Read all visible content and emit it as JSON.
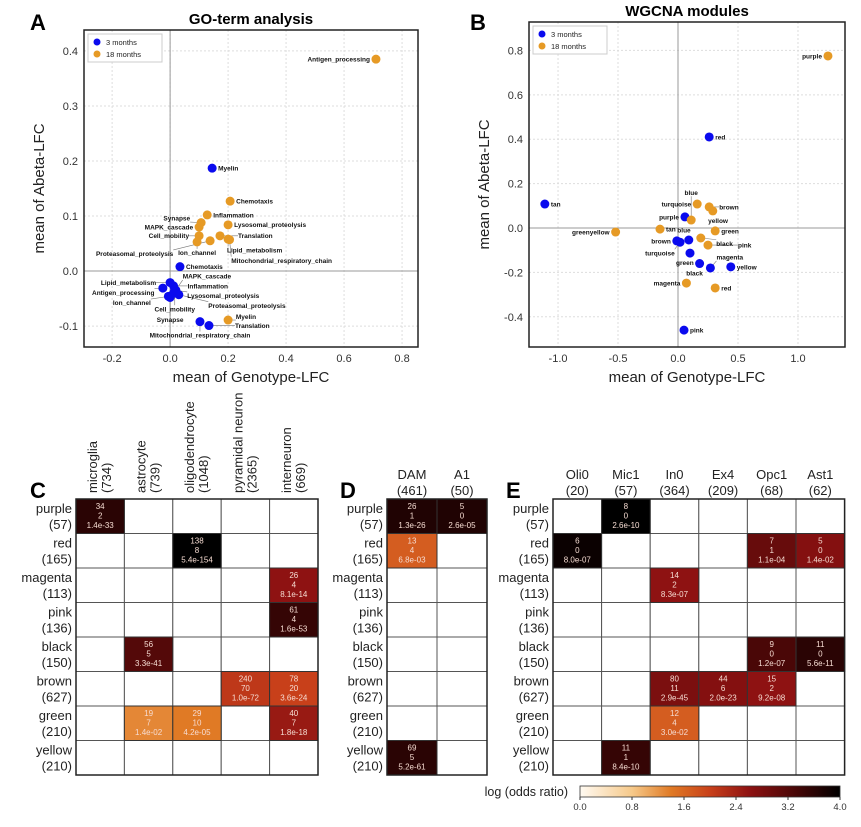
{
  "panel_letters": [
    "A",
    "B",
    "C",
    "D",
    "E"
  ],
  "chart_data": [
    {
      "type": "scatter",
      "panel": "A",
      "title": "GO-term analysis",
      "xlabel": "mean of Genotype-LFC",
      "ylabel": "mean of Abeta-LFC",
      "xlim": [
        -0.297,
        0.855
      ],
      "ylim": [
        -0.138,
        0.438
      ],
      "xticks": [
        -0.2,
        0.0,
        0.2,
        0.4,
        0.6,
        0.8
      ],
      "xtick_labels": [
        "-0.2",
        "0.0",
        "0.2",
        "0.4",
        "0.6",
        "0.8"
      ],
      "yticks": [
        -0.1,
        0.0,
        0.1,
        0.2,
        0.3,
        0.4
      ],
      "ytick_labels": [
        "-0.1",
        "0.0",
        "0.1",
        "0.2",
        "0.3",
        "0.4"
      ],
      "grid": true,
      "legend": "top-left",
      "series": [
        {
          "name": "3 months",
          "color": "#0a0aee",
          "points": [
            {
              "label": "Myelin",
              "x": 0.145,
              "y": 0.187
            },
            {
              "label": "Chemotaxis",
              "x": 0.034,
              "y": 0.008
            },
            {
              "label": "Inflammation",
              "x": 0.012,
              "y": -0.027
            },
            {
              "label": "Lipid_metabolism",
              "x": 0.0,
              "y": -0.021
            },
            {
              "label": "Lysosomal_proteolysis",
              "x": 0.02,
              "y": -0.035
            },
            {
              "label": "Antigen_processing",
              "x": -0.025,
              "y": -0.031
            },
            {
              "label": "Cell_mobility",
              "x": 0.016,
              "y": -0.034
            },
            {
              "label": "Ion_channel",
              "x": -0.006,
              "y": -0.046
            },
            {
              "label": "Proteasomal_proteolysis",
              "x": 0.03,
              "y": -0.043
            },
            {
              "label": "MAPK_cascade",
              "x": 0.012,
              "y": -0.04
            },
            {
              "label": "Synapse",
              "x": 0.0,
              "y": -0.048
            },
            {
              "label": "Mitochondrial_respiratory_chain",
              "x": 0.103,
              "y": -0.092
            },
            {
              "label": "Translation",
              "x": 0.134,
              "y": -0.099
            }
          ]
        },
        {
          "name": "18 months",
          "color": "#e69a25",
          "points": [
            {
              "label": "Antigen_processing",
              "x": 0.71,
              "y": 0.385
            },
            {
              "label": "Chemotaxis",
              "x": 0.207,
              "y": 0.127
            },
            {
              "label": "Inflammation",
              "x": 0.128,
              "y": 0.102
            },
            {
              "label": "MAPK_cascade",
              "x": 0.1,
              "y": 0.08
            },
            {
              "label": "Synapse",
              "x": 0.107,
              "y": 0.088
            },
            {
              "label": "Lysosomal_proteolysis",
              "x": 0.2,
              "y": 0.084
            },
            {
              "label": "Translation",
              "x": 0.172,
              "y": 0.064
            },
            {
              "label": "Cell_mobility",
              "x": 0.1,
              "y": 0.064
            },
            {
              "label": "Ion_channel",
              "x": 0.093,
              "y": 0.053
            },
            {
              "label": "Lipid_metabolism",
              "x": 0.2,
              "y": 0.058
            },
            {
              "label": "Proteasomal_proteolysis",
              "x": 0.138,
              "y": 0.055
            },
            {
              "label": "Mitochondrial_respiratory_chain",
              "x": 0.205,
              "y": 0.057
            },
            {
              "label": "Myelin",
              "x": 0.2,
              "y": -0.089
            }
          ]
        }
      ]
    },
    {
      "type": "scatter",
      "panel": "B",
      "title": "WGCNA modules",
      "xlabel": "mean of Genotype-LFC",
      "ylabel": "mean of Abeta-LFC",
      "xlim": [
        -1.242,
        1.392
      ],
      "ylim": [
        -0.536,
        0.928
      ],
      "xticks": [
        -1.0,
        -0.5,
        0.0,
        0.5,
        1.0
      ],
      "xtick_labels": [
        "-1.0",
        "-0.5",
        "0.0",
        "0.5",
        "1.0"
      ],
      "yticks": [
        -0.4,
        -0.2,
        0.0,
        0.2,
        0.4,
        0.6,
        0.8
      ],
      "ytick_labels": [
        "-0.4",
        "-0.2",
        "0.0",
        "0.2",
        "0.4",
        "0.6",
        "0.8"
      ],
      "grid": true,
      "legend": "top-left",
      "series": [
        {
          "name": "3 months",
          "color": "#0a0aee",
          "points": [
            {
              "label": "tan",
              "x": -1.11,
              "y": 0.108
            },
            {
              "label": "red",
              "x": 0.26,
              "y": 0.41
            },
            {
              "label": "purple",
              "x": 0.058,
              "y": 0.05
            },
            {
              "label": "blue",
              "x": 0.09,
              "y": -0.054
            },
            {
              "label": "brown",
              "x": -0.01,
              "y": -0.058
            },
            {
              "label": "turquoise",
              "x": 0.017,
              "y": -0.064
            },
            {
              "label": "green",
              "x": 0.1,
              "y": -0.113
            },
            {
              "label": "black",
              "x": 0.18,
              "y": -0.16
            },
            {
              "label": "magenta",
              "x": 0.27,
              "y": -0.18
            },
            {
              "label": "yellow",
              "x": 0.44,
              "y": -0.175
            },
            {
              "label": "pink",
              "x": 0.05,
              "y": -0.46
            }
          ]
        },
        {
          "name": "18 months",
          "color": "#e69a25",
          "points": [
            {
              "label": "purple",
              "x": 1.25,
              "y": 0.775
            },
            {
              "label": "turquoise",
              "x": 0.16,
              "y": 0.108
            },
            {
              "label": "brown",
              "x": 0.26,
              "y": 0.095
            },
            {
              "label": "yellow",
              "x": 0.29,
              "y": 0.077
            },
            {
              "label": "greenyellow",
              "x": -0.52,
              "y": -0.018
            },
            {
              "label": "tan",
              "x": -0.15,
              "y": -0.005
            },
            {
              "label": "blue",
              "x": 0.11,
              "y": 0.036
            },
            {
              "label": "green",
              "x": 0.31,
              "y": -0.013
            },
            {
              "label": "black",
              "x": 0.19,
              "y": -0.045
            },
            {
              "label": "pink",
              "x": 0.25,
              "y": -0.077
            },
            {
              "label": "magenta",
              "x": 0.07,
              "y": -0.248
            },
            {
              "label": "red",
              "x": 0.31,
              "y": -0.27
            }
          ]
        }
      ]
    },
    {
      "type": "heatmap",
      "panel": "C",
      "rows": [
        {
          "name": "purple",
          "count": "(57)"
        },
        {
          "name": "red",
          "count": "(165)"
        },
        {
          "name": "magenta",
          "count": "(113)"
        },
        {
          "name": "pink",
          "count": "(136)"
        },
        {
          "name": "black",
          "count": "(150)"
        },
        {
          "name": "brown",
          "count": "(627)"
        },
        {
          "name": "green",
          "count": "(210)"
        },
        {
          "name": "yellow",
          "count": "(210)"
        }
      ],
      "columns": [
        {
          "name": "microglia",
          "count": "(734)"
        },
        {
          "name": "astrocyte",
          "count": "(739)"
        },
        {
          "name": "oligodendrocyte",
          "count": "(1048)"
        },
        {
          "name": "pyramidal neuron",
          "count": "(2365)"
        },
        {
          "name": "interneuron",
          "count": "(669)"
        }
      ],
      "cells": [
        {
          "row": 0,
          "col": 0,
          "overlap": "34",
          "expected": "2",
          "p": "1.4e-33",
          "log_odds": 3.6
        },
        {
          "row": 1,
          "col": 2,
          "overlap": "138",
          "expected": "8",
          "p": "5.4e-154",
          "log_odds": 4.0
        },
        {
          "row": 2,
          "col": 4,
          "overlap": "26",
          "expected": "4",
          "p": "8.1e-14",
          "log_odds": 2.6
        },
        {
          "row": 3,
          "col": 4,
          "overlap": "61",
          "expected": "4",
          "p": "1.6e-53",
          "log_odds": 3.5
        },
        {
          "row": 4,
          "col": 1,
          "overlap": "56",
          "expected": "5",
          "p": "3.3e-41",
          "log_odds": 3.2
        },
        {
          "row": 5,
          "col": 3,
          "overlap": "240",
          "expected": "70",
          "p": "1.0e-72",
          "log_odds": 2.1
        },
        {
          "row": 5,
          "col": 4,
          "overlap": "78",
          "expected": "20",
          "p": "3.6e-24",
          "log_odds": 2.0
        },
        {
          "row": 6,
          "col": 1,
          "overlap": "19",
          "expected": "7",
          "p": "1.4e-02",
          "log_odds": 1.3
        },
        {
          "row": 6,
          "col": 2,
          "overlap": "29",
          "expected": "10",
          "p": "4.2e-05",
          "log_odds": 1.4
        },
        {
          "row": 6,
          "col": 4,
          "overlap": "40",
          "expected": "7",
          "p": "1.8e-18",
          "log_odds": 2.5
        }
      ]
    },
    {
      "type": "heatmap",
      "panel": "D",
      "rows": [
        {
          "name": "purple",
          "count": "(57)"
        },
        {
          "name": "red",
          "count": "(165)"
        },
        {
          "name": "magenta",
          "count": "(113)"
        },
        {
          "name": "pink",
          "count": "(136)"
        },
        {
          "name": "black",
          "count": "(150)"
        },
        {
          "name": "brown",
          "count": "(627)"
        },
        {
          "name": "green",
          "count": "(210)"
        },
        {
          "name": "yellow",
          "count": "(210)"
        }
      ],
      "columns": [
        {
          "name": "DAM",
          "count": "(461)"
        },
        {
          "name": "A1",
          "count": "(50)"
        }
      ],
      "cells": [
        {
          "row": 0,
          "col": 0,
          "overlap": "26",
          "expected": "1",
          "p": "1.3e-26",
          "log_odds": 3.7
        },
        {
          "row": 0,
          "col": 1,
          "overlap": "5",
          "expected": "0",
          "p": "2.6e-05",
          "log_odds": 3.7
        },
        {
          "row": 1,
          "col": 0,
          "overlap": "13",
          "expected": "4",
          "p": "6.8e-03",
          "log_odds": 1.7
        },
        {
          "row": 7,
          "col": 0,
          "overlap": "69",
          "expected": "5",
          "p": "5.2e-61",
          "log_odds": 3.6
        }
      ]
    },
    {
      "type": "heatmap",
      "panel": "E",
      "rows": [
        {
          "name": "purple",
          "count": "(57)"
        },
        {
          "name": "red",
          "count": "(165)"
        },
        {
          "name": "magenta",
          "count": "(113)"
        },
        {
          "name": "pink",
          "count": "(136)"
        },
        {
          "name": "black",
          "count": "(150)"
        },
        {
          "name": "brown",
          "count": "(627)"
        },
        {
          "name": "green",
          "count": "(210)"
        },
        {
          "name": "yellow",
          "count": "(210)"
        }
      ],
      "columns": [
        {
          "name": "Oli0",
          "count": "(20)"
        },
        {
          "name": "Mic1",
          "count": "(57)"
        },
        {
          "name": "In0",
          "count": "(364)"
        },
        {
          "name": "Ex4",
          "count": "(209)"
        },
        {
          "name": "Opc1",
          "count": "(68)"
        },
        {
          "name": "Ast1",
          "count": "(62)"
        }
      ],
      "cells": [
        {
          "row": 0,
          "col": 1,
          "overlap": "8",
          "expected": "0",
          "p": "2.6e-10",
          "log_odds": 4.0
        },
        {
          "row": 1,
          "col": 0,
          "overlap": "6",
          "expected": "0",
          "p": "8.0e-07",
          "log_odds": 3.9
        },
        {
          "row": 1,
          "col": 4,
          "overlap": "7",
          "expected": "1",
          "p": "1.1e-04",
          "log_odds": 3.0
        },
        {
          "row": 1,
          "col": 5,
          "overlap": "5",
          "expected": "0",
          "p": "1.4e-02",
          "log_odds": 2.7
        },
        {
          "row": 2,
          "col": 2,
          "overlap": "14",
          "expected": "2",
          "p": "8.3e-07",
          "log_odds": 2.6
        },
        {
          "row": 4,
          "col": 4,
          "overlap": "9",
          "expected": "0",
          "p": "1.2e-07",
          "log_odds": 3.3
        },
        {
          "row": 4,
          "col": 5,
          "overlap": "11",
          "expected": "0",
          "p": "5.6e-11",
          "log_odds": 3.6
        },
        {
          "row": 5,
          "col": 2,
          "overlap": "80",
          "expected": "11",
          "p": "2.9e-45",
          "log_odds": 2.8
        },
        {
          "row": 5,
          "col": 3,
          "overlap": "44",
          "expected": "6",
          "p": "2.0e-23",
          "log_odds": 2.7
        },
        {
          "row": 5,
          "col": 4,
          "overlap": "15",
          "expected": "2",
          "p": "9.2e-08",
          "log_odds": 2.6
        },
        {
          "row": 6,
          "col": 2,
          "overlap": "12",
          "expected": "4",
          "p": "3.0e-02",
          "log_odds": 1.7
        },
        {
          "row": 7,
          "col": 1,
          "overlap": "11",
          "expected": "1",
          "p": "8.4e-10",
          "log_odds": 3.5
        }
      ]
    }
  ],
  "colorbar": {
    "label": "log (odds ratio)",
    "min": 0.0,
    "max": 4.0,
    "tick_values": [
      0.0,
      0.8,
      1.6,
      2.4,
      3.2,
      4.0
    ],
    "tick_labels": [
      "0.0",
      "0.8",
      "1.6",
      "2.4",
      "3.2",
      "4.0"
    ],
    "stops": [
      {
        "v": 0.0,
        "c": "#fffaf2"
      },
      {
        "v": 0.8,
        "c": "#f6c98a"
      },
      {
        "v": 1.4,
        "c": "#e07a25"
      },
      {
        "v": 2.0,
        "c": "#c8401a"
      },
      {
        "v": 2.6,
        "c": "#8e1212"
      },
      {
        "v": 3.3,
        "c": "#4a0707"
      },
      {
        "v": 4.0,
        "c": "#000000"
      }
    ]
  }
}
